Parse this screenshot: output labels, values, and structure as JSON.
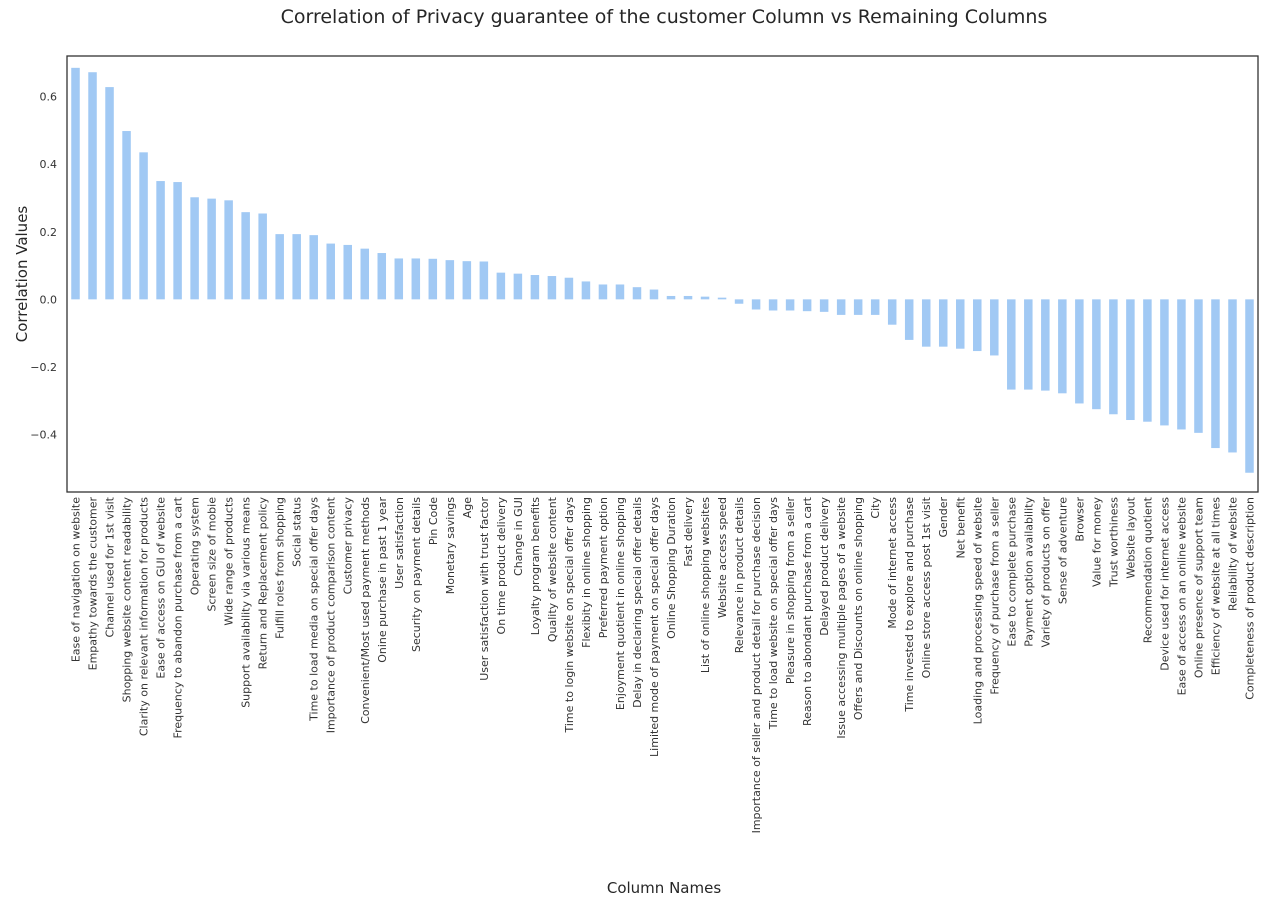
{
  "chart_data": {
    "type": "bar",
    "title": "Correlation of Privacy guarantee of the customer Column vs Remaining Columns",
    "xlabel": "Column Names",
    "ylabel": "Correlation Values",
    "ylim": [
      -0.57,
      0.72
    ],
    "yticks": [
      "0.6",
      "0.4",
      "0.2",
      "0.0",
      "−0.2",
      "−0.4"
    ],
    "ytick_values": [
      0.6,
      0.4,
      0.2,
      0.0,
      -0.2,
      -0.4
    ],
    "grid": false,
    "legend": "none",
    "bar_color": "#a1c9f4",
    "categories": [
      "Ease of navigation on website",
      "Empathy towards the customer",
      "Channel used for 1st visit",
      "Shopping website content readability",
      "Clarity on relevant information for products",
      "Ease of access on GUI of website",
      "Frequency to abandon purchase from a cart",
      "Operating system",
      "Screen size of mobie",
      "Wide range of products",
      "Support availability via various means",
      "Return and Replacement policy",
      "Fulfill roles from shopping",
      "Social status",
      "Time to load media on special offer days",
      "Importance of product comparison content",
      "Customer privacy",
      "Convenient/Most used payment methods",
      "Onine purchase in past 1 year",
      "User satisfaction",
      "Security on payment details",
      "Pin Code",
      "Monetary savings",
      "Age",
      "User satisfaction with trust factor",
      "On time product delivery",
      "Change in GUI",
      "Loyalty program benefits",
      "Quality of website content",
      "Time to login website on special offer days",
      "Flexibity in online shopping",
      "Preferred payment option",
      "Enjoyment quotient in online shopping",
      "Delay in declaring special offer details",
      "Limited mode of payment on special offer days",
      "Online Shopping Duration",
      "Fast delivery",
      "List of online shopping websites",
      "Website access speed",
      "Relevance in product details",
      "Importance of seller and product detail for purchase decision",
      "Time to load website on special offer days",
      "Pleasure in shopping from a seller",
      "Reason to abondant purchase from a cart",
      "Delayed product delivery",
      "Issue accessing multiple pages of a website",
      "Offers and Discounts on online shopping",
      "City",
      "Mode of internet access",
      "Time invested to explore and purchase",
      "Online store access post 1st visit",
      "Gender",
      "Net benefit",
      "Loading and processing speed of website",
      "Frequency of purchase from a seller",
      "Ease to complete purchase",
      "Payment option availability",
      "Variety of products on offer",
      "Sense of adventure",
      "Browser",
      "Value for money",
      "Trust worthiness",
      "Website layout",
      "Recommendation quotient",
      "Device used for internet access",
      "Ease of access on an online website",
      "Online presence of support team",
      "Efficiency of website at all times",
      "Reliability of website",
      "Completeness of product description"
    ],
    "values": [
      0.685,
      0.672,
      0.628,
      0.498,
      0.435,
      0.35,
      0.347,
      0.302,
      0.298,
      0.293,
      0.258,
      0.254,
      0.193,
      0.193,
      0.19,
      0.165,
      0.161,
      0.15,
      0.137,
      0.121,
      0.121,
      0.12,
      0.116,
      0.113,
      0.112,
      0.079,
      0.076,
      0.072,
      0.069,
      0.064,
      0.053,
      0.044,
      0.044,
      0.036,
      0.029,
      0.01,
      0.01,
      0.008,
      0.005,
      -0.013,
      -0.03,
      -0.033,
      -0.033,
      -0.035,
      -0.037,
      -0.046,
      -0.046,
      -0.046,
      -0.075,
      -0.12,
      -0.14,
      -0.14,
      -0.146,
      -0.153,
      -0.166,
      -0.267,
      -0.267,
      -0.27,
      -0.278,
      -0.308,
      -0.325,
      -0.34,
      -0.357,
      -0.362,
      -0.373,
      -0.385,
      -0.395,
      -0.44,
      -0.453,
      -0.513
    ]
  }
}
